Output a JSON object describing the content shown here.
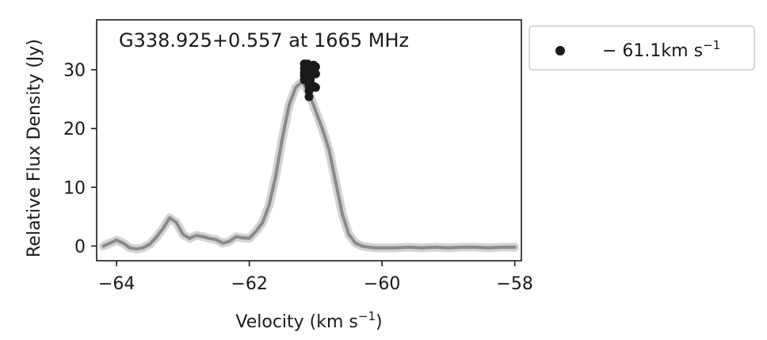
{
  "chart_data": {
    "type": "line",
    "title": "G338.925+0.557 at 1665 MHz",
    "xlabel_main": "Velocity (km s",
    "xlabel_sup": "−1",
    "xlabel_end": ")",
    "ylabel": "Relative Flux Density (Jy)",
    "xlim": [
      -64.3,
      -57.9
    ],
    "ylim": [
      -2.5,
      38.5
    ],
    "xticks": [
      -64,
      -62,
      -60,
      -58
    ],
    "xtick_labels": [
      "−64",
      "−62",
      "−60",
      "−58"
    ],
    "yticks": [
      0,
      10,
      20,
      30
    ],
    "ytick_labels": [
      "0",
      "10",
      "20",
      "30"
    ],
    "grid": false,
    "legend_position": "outside-top-right",
    "legend": [
      {
        "label_main": "− 61.1km s",
        "label_sup": "−1",
        "marker": "circle",
        "color": "#1a1a1a"
      }
    ],
    "series": [
      {
        "color": "#8a8a8a",
        "x": [
          -64.2,
          -64.1,
          -64.0,
          -63.9,
          -63.8,
          -63.7,
          -63.6,
          -63.5,
          -63.4,
          -63.3,
          -63.2,
          -63.1,
          -63.0,
          -62.9,
          -62.8,
          -62.7,
          -62.6,
          -62.5,
          -62.4,
          -62.3,
          -62.2,
          -62.1,
          -62.0,
          -61.9,
          -61.8,
          -61.7,
          -61.6,
          -61.5,
          -61.4,
          -61.3,
          -61.2,
          -61.1,
          -61.0,
          -60.9,
          -60.8,
          -60.7,
          -60.6,
          -60.5,
          -60.4,
          -60.3,
          -60.2,
          -60.1,
          -60.0,
          -59.8,
          -59.6,
          -59.4,
          -59.2,
          -59.0,
          -58.8,
          -58.6,
          -58.4,
          -58.2,
          -58.0
        ],
        "y": [
          0.0,
          0.5,
          1.0,
          0.5,
          -0.3,
          -0.5,
          -0.3,
          0.3,
          1.5,
          3.0,
          4.8,
          4.0,
          2.0,
          1.3,
          1.8,
          1.6,
          1.3,
          1.1,
          0.5,
          0.8,
          1.6,
          1.4,
          1.3,
          2.5,
          4.0,
          7.0,
          12.0,
          18.5,
          24.0,
          27.0,
          28.0,
          26.0,
          23.0,
          20.0,
          16.5,
          11.0,
          5.5,
          2.0,
          0.5,
          0.0,
          -0.2,
          -0.3,
          -0.3,
          -0.3,
          -0.2,
          -0.3,
          -0.2,
          -0.3,
          -0.2,
          -0.2,
          -0.3,
          -0.2,
          -0.2
        ]
      }
    ],
    "points": [
      {
        "x": -61.17,
        "y": 31.0
      },
      {
        "x": -61.17,
        "y": 30.2
      },
      {
        "x": -61.17,
        "y": 29.5
      },
      {
        "x": -61.17,
        "y": 29.0
      },
      {
        "x": -61.17,
        "y": 28.3
      },
      {
        "x": -61.12,
        "y": 31.0
      },
      {
        "x": -61.12,
        "y": 30.4
      },
      {
        "x": -61.12,
        "y": 29.8
      },
      {
        "x": -61.12,
        "y": 28.8
      },
      {
        "x": -61.08,
        "y": 29.0
      },
      {
        "x": -61.08,
        "y": 28.3
      },
      {
        "x": -61.1,
        "y": 27.3
      },
      {
        "x": -61.1,
        "y": 26.4
      },
      {
        "x": -61.1,
        "y": 25.4
      },
      {
        "x": -61.03,
        "y": 30.8
      },
      {
        "x": -61.03,
        "y": 30.1
      },
      {
        "x": -61.0,
        "y": 30.5
      },
      {
        "x": -61.0,
        "y": 29.3
      },
      {
        "x": -61.03,
        "y": 27.2
      },
      {
        "x": -61.0,
        "y": 27.0
      }
    ]
  }
}
